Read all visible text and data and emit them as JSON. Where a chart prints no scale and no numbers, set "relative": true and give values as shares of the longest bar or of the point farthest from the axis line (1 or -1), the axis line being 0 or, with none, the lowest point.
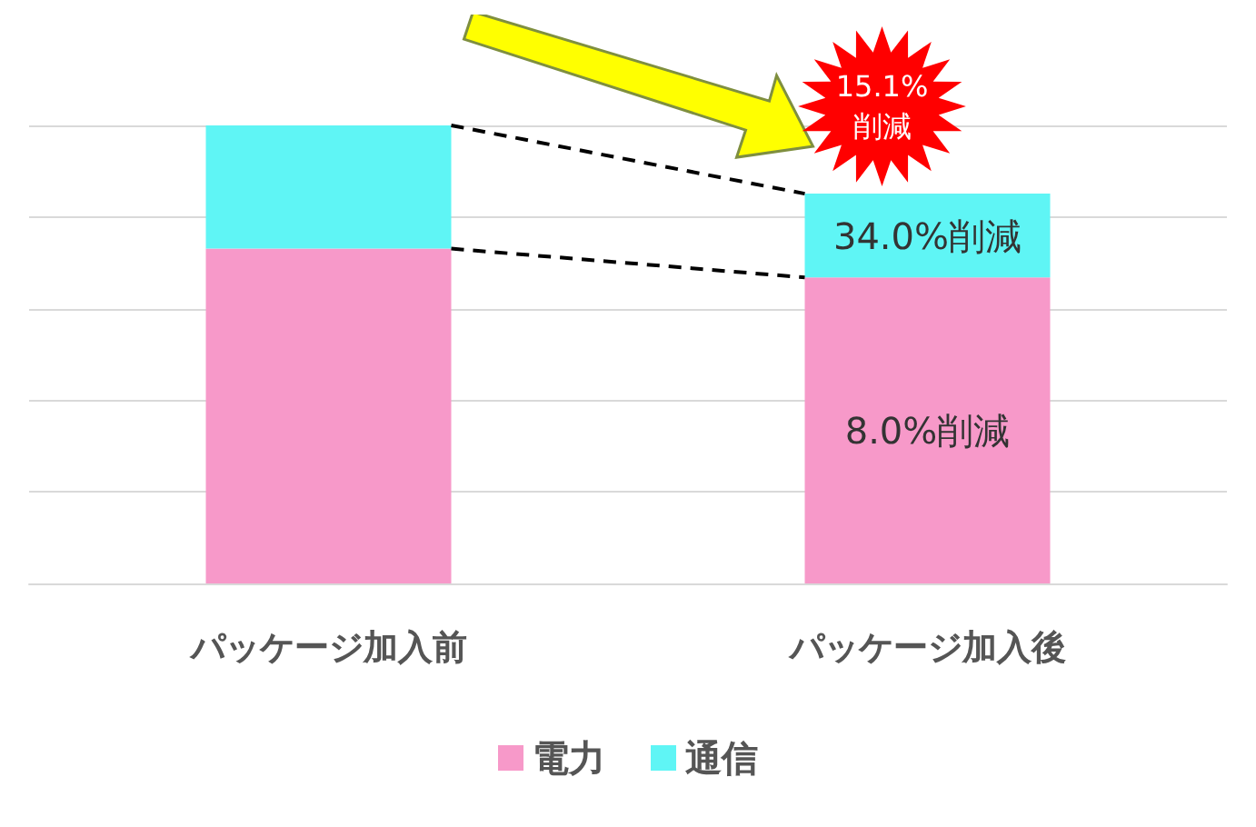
{
  "chart_data": {
    "type": "bar",
    "stacked": true,
    "relative": true,
    "categories": [
      "パッケージ加入前",
      "パッケージ加入後"
    ],
    "series": [
      {
        "name": "電力",
        "color": "#f799c9",
        "values": [
          0.731,
          0.668
        ]
      },
      {
        "name": "通信",
        "color": "#5ff5f5",
        "values": [
          0.269,
          0.183
        ]
      }
    ],
    "annotations": [
      "15.1%削減",
      "34.0%削減",
      "8.0%削減"
    ],
    "grid": "y",
    "legend": "bottom"
  }
}
